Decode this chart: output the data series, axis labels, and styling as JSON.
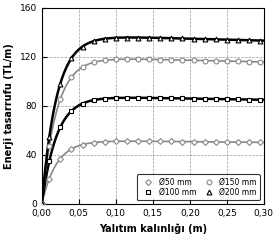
{
  "title": "",
  "xlabel": "Yalıtım kalınlığı (m)",
  "ylabel": "Enerji tasarrufu (TL/m)",
  "xlim": [
    0.0,
    0.3
  ],
  "ylim": [
    0,
    160
  ],
  "xticks": [
    0.0,
    0.05,
    0.1,
    0.15,
    0.2,
    0.25,
    0.3
  ],
  "yticks": [
    0,
    40,
    80,
    120,
    160
  ],
  "series": [
    {
      "label": "Ø50 mm",
      "color": "#888888",
      "linewidth": 1.2,
      "marker": "D",
      "markersize": 3.0,
      "a": 52,
      "b": 50,
      "c": 0.12
    },
    {
      "label": "Ø100 mm",
      "color": "#000000",
      "linewidth": 1.8,
      "marker": "s",
      "markersize": 3.2,
      "a": 88,
      "b": 50,
      "c": 0.12
    },
    {
      "label": "Ø150 mm",
      "color": "#888888",
      "linewidth": 1.2,
      "marker": "o",
      "markersize": 3.5,
      "a": 120,
      "b": 50,
      "c": 0.12
    },
    {
      "label": "Ø200 mm",
      "color": "#000000",
      "linewidth": 1.8,
      "marker": "^",
      "markersize": 3.5,
      "a": 138,
      "b": 50,
      "c": 0.12
    }
  ],
  "legend_ncol": 2,
  "grid": true,
  "background": "#ffffff",
  "figsize": [
    2.78,
    2.38
  ],
  "dpi": 100
}
